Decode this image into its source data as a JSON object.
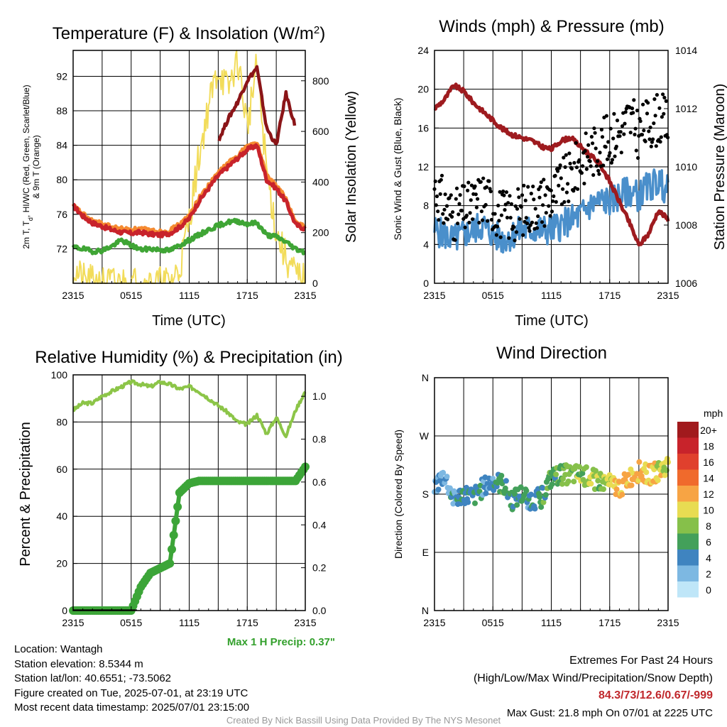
{
  "x_ticks": [
    "2315",
    "0515",
    "1115",
    "1715",
    "2315"
  ],
  "panels": {
    "temp": {
      "title_main": "Temperature (F) & Insolation (W/m",
      "title_sup": "2",
      "title_end": ")",
      "xlabel": "Time (UTC)",
      "ylabel_line1": "2m T, T",
      "ylabel_sub": "d",
      "ylabel_rest": ", HI/WC (Red, Green, Scarlet/Blue)",
      "ylabel_line2": "& 9m T (Orange)",
      "y2label": "Solar Insolation (Yellow)",
      "yticks": [
        "92",
        "88",
        "84",
        "80",
        "76",
        "72"
      ],
      "y2ticks": [
        "800",
        "600",
        "400",
        "200",
        "0"
      ]
    },
    "wind": {
      "title": "Winds (mph) & Pressure (mb)",
      "xlabel": "Time (UTC)",
      "ylabel": "Sonic Wind & Gust (Blue, Black)",
      "y2label": "Station Pressure (Maroon)",
      "yticks": [
        "24",
        "20",
        "16",
        "12",
        "8",
        "4",
        "0"
      ],
      "y2ticks": [
        "1014",
        "1012",
        "1010",
        "1008",
        "1006"
      ]
    },
    "rh": {
      "title": "Relative Humidity (%) & Precipitation (in)",
      "ylabel": "Percent & Precipitation",
      "yticks": [
        "100",
        "80",
        "60",
        "40",
        "20",
        "0"
      ],
      "y2ticks": [
        "1.0",
        "0.8",
        "0.6",
        "0.4",
        "0.2",
        "0.0"
      ],
      "max_precip": "Max 1 H Precip: 0.37\""
    },
    "dir": {
      "title": "Wind Direction",
      "ylabel": "Direction (Colored By Speed)",
      "yticks": [
        "N",
        "W",
        "S",
        "E",
        "N"
      ],
      "colorbar_unit": "mph",
      "colorbar_labels": [
        "20+",
        "18",
        "16",
        "14",
        "12",
        "10",
        "8",
        "6",
        "4",
        "2",
        "0"
      ],
      "colorbar_colors": [
        "#a11a1d",
        "#c8232b",
        "#e0402d",
        "#f06a2c",
        "#f7a444",
        "#e8dc52",
        "#86c04a",
        "#43a05a",
        "#3f84c0",
        "#7db8e2",
        "#bfe6f8"
      ]
    }
  },
  "info": {
    "location": "Location: Wantagh",
    "elevation": "Station elevation: 8.5344 m",
    "latlon": "Station lat/lon: 40.6551; -73.5062",
    "created": "Figure created on Tue, 2025-07-01, at 23:19 UTC",
    "recent": "Most recent data timestamp: 2025/07/01 23:15:00"
  },
  "extremes": {
    "title": "Extremes For Past 24 Hours",
    "subtitle": "(High/Low/Max Wind/Precipitation/Snow Depth)",
    "values": "84.3/73/12.6/0.67/-999",
    "gust": "Max Gust: 21.8 mph On 07/01 at 2225 UTC"
  },
  "credit": "Created By Nick Bassill Using Data Provided By The NYS Mesonet",
  "chart_data": [
    {
      "type": "line",
      "x_hours": [
        0,
        1,
        2,
        3,
        4,
        5,
        6,
        7,
        8,
        9,
        10,
        11,
        12,
        13,
        14,
        15,
        16,
        17,
        18,
        19,
        20,
        21,
        22,
        23,
        24
      ],
      "series": [
        {
          "color": "#c8232b",
          "values": [
            77,
            75.8,
            75,
            74.6,
            74.2,
            73.9,
            73.8,
            73.9,
            73.7,
            73.6,
            73.8,
            74.5,
            75.5,
            77.5,
            79,
            80.5,
            81.5,
            82.5,
            83.5,
            84,
            80,
            79,
            77.5,
            74.8,
            74.3
          ]
        },
        {
          "color": "#f58a30",
          "values": [
            77,
            76,
            75.2,
            74.9,
            74.5,
            74.3,
            74.2,
            74.3,
            74.1,
            74,
            74.1,
            74.8,
            75.8,
            77.8,
            79.3,
            80.8,
            81.9,
            82.8,
            83.9,
            84.3,
            80.4,
            79.3,
            77.8,
            75,
            74.5
          ]
        },
        {
          "color": "#3fa535",
          "values": [
            72.2,
            72,
            71.7,
            71.8,
            72.3,
            73,
            72.4,
            71.9,
            72,
            71.9,
            71.8,
            72.4,
            73,
            73.6,
            74.2,
            74.7,
            75.1,
            75.2,
            74.9,
            75,
            73.6,
            73.4,
            72.8,
            72,
            71.6
          ]
        },
        {
          "color": "#8b1518",
          "values": [
            null,
            null,
            null,
            null,
            null,
            null,
            null,
            null,
            null,
            null,
            null,
            null,
            null,
            null,
            null,
            84.5,
            87,
            89,
            91.5,
            93,
            86,
            84,
            90,
            86,
            null
          ]
        },
        {
          "color": "#f2dc5a",
          "values": [
            60,
            10,
            2,
            0,
            0,
            0,
            0,
            0,
            0,
            0,
            0,
            60,
            250,
            500,
            700,
            850,
            760,
            890,
            620,
            860,
            450,
            200,
            100,
            30,
            10
          ]
        }
      ],
      "ylim": [
        68,
        95
      ],
      "y2lim": [
        0,
        920
      ]
    },
    {
      "type": "line",
      "x_hours": [
        0,
        1,
        2,
        3,
        4,
        5,
        6,
        7,
        8,
        9,
        10,
        11,
        12,
        13,
        14,
        15,
        16,
        17,
        18,
        19,
        20,
        21,
        22,
        23,
        24
      ],
      "series": [
        {
          "color": "#4a8fcb",
          "values": [
            5.5,
            5,
            4.5,
            5,
            5.5,
            6,
            5,
            4.5,
            5,
            5.5,
            5.5,
            5.5,
            5.5,
            6,
            6.5,
            7,
            8,
            8.5,
            8.5,
            9,
            9.5,
            9,
            10,
            10.5,
            9.5
          ]
        },
        {
          "color": "#000000",
          "values": [
            10,
            8,
            7,
            7.5,
            8,
            9,
            8,
            7,
            7,
            7.5,
            8,
            8.5,
            9,
            10,
            11,
            12.5,
            13.5,
            14,
            15,
            15.5,
            17,
            15.5,
            16.5,
            17,
            16.5
          ]
        },
        {
          "color": "#9e1b1f",
          "values": [
            1012,
            1012.3,
            1012.8,
            1012.6,
            1012.2,
            1011.9,
            1011.6,
            1011.3,
            1011.1,
            1011,
            1010.9,
            1010.7,
            1010.6,
            1010.9,
            1011,
            1010.7,
            1010.4,
            1010.1,
            1009.5,
            1008.8,
            1008.1,
            1007.3,
            1007.7,
            1008.5,
            1008.2
          ]
        }
      ],
      "ylim": [
        0,
        24
      ],
      "y2lim": [
        1006,
        1014
      ]
    },
    {
      "type": "line",
      "x_hours": [
        0,
        1,
        2,
        3,
        4,
        5,
        6,
        7,
        8,
        9,
        10,
        11,
        12,
        13,
        14,
        15,
        16,
        17,
        18,
        19,
        20,
        21,
        22,
        23,
        24
      ],
      "series": [
        {
          "color": "#8cc548",
          "values": [
            85,
            88,
            88,
            91,
            93,
            95,
            97,
            96,
            95,
            97,
            96,
            94,
            95,
            93,
            90,
            87,
            84,
            80,
            79,
            83,
            75,
            82,
            74,
            85,
            93
          ]
        },
        {
          "color": "#3ca538",
          "values": [
            0,
            0,
            0,
            0,
            0,
            0,
            0,
            10,
            16,
            18,
            20,
            50,
            54,
            55,
            55,
            55,
            55,
            55,
            55,
            55,
            55,
            55,
            55,
            55,
            61
          ]
        }
      ],
      "ylim": [
        0,
        100
      ],
      "y2lim": [
        0,
        1.1
      ]
    },
    {
      "type": "scatter",
      "x_hours": [
        0,
        1,
        2,
        3,
        4,
        5,
        6,
        7,
        8,
        9,
        10,
        11,
        12,
        13,
        14,
        15,
        16,
        17,
        18,
        19,
        20,
        21,
        22,
        23,
        24
      ],
      "direction_deg": [
        190,
        210,
        170,
        180,
        175,
        190,
        200,
        195,
        170,
        180,
        170,
        175,
        205,
        210,
        210,
        210,
        205,
        200,
        195,
        190,
        205,
        215,
        210,
        215,
        225
      ],
      "speed_mph": [
        3,
        3,
        4,
        4,
        5,
        4,
        4,
        6,
        5,
        5,
        4,
        6,
        6,
        7,
        8,
        8,
        9,
        8,
        10,
        11,
        11,
        12,
        11,
        10,
        9
      ],
      "ylabels": [
        "N",
        "W",
        "S",
        "E",
        "N"
      ]
    }
  ]
}
